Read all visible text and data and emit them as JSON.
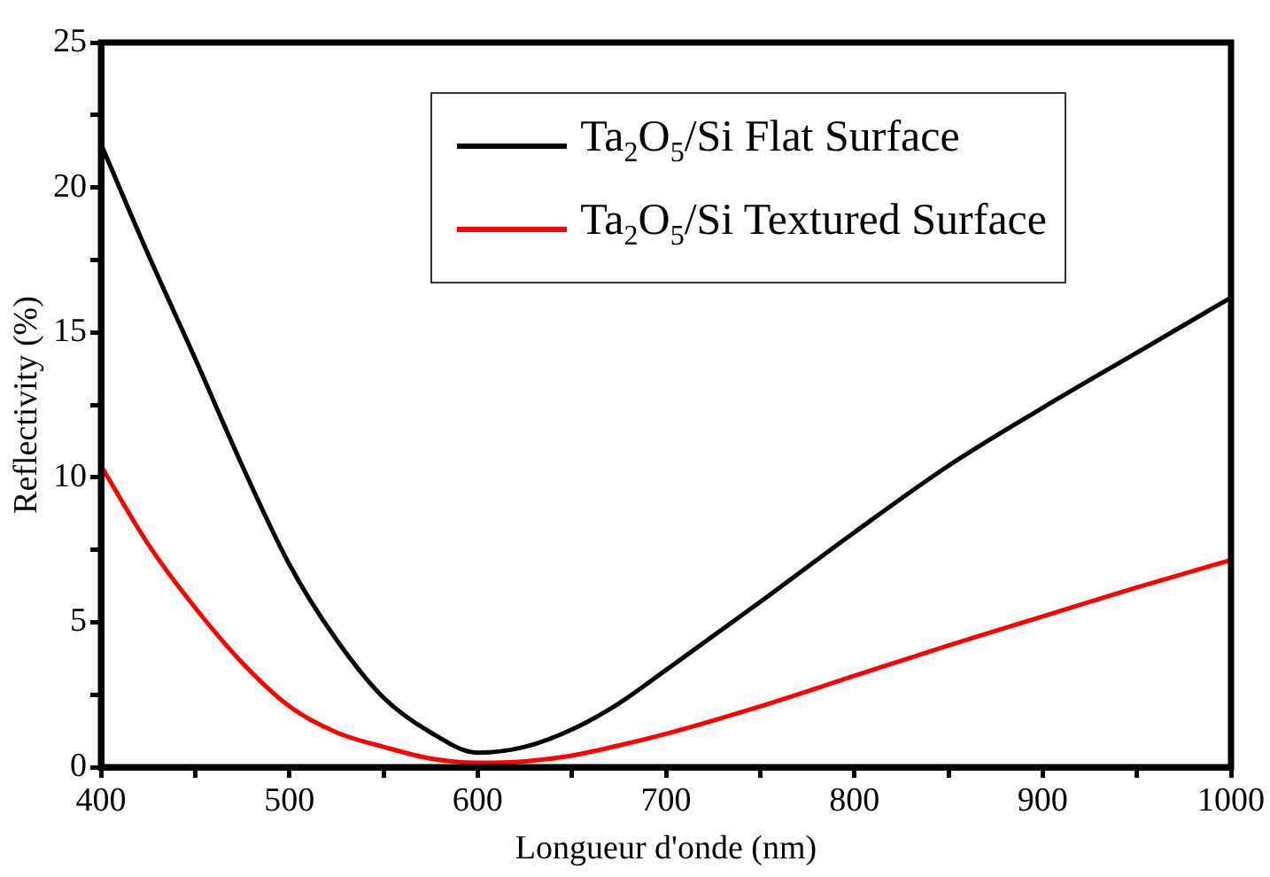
{
  "chart_data": {
    "type": "line",
    "xlabel": "Longueur d'onde (nm)",
    "ylabel": "Reflectivity (%)",
    "x": [
      400,
      425,
      450,
      475,
      500,
      525,
      550,
      575,
      600,
      625,
      650,
      675,
      700,
      750,
      800,
      850,
      900,
      950,
      1000
    ],
    "series": [
      {
        "name": "Ta$_{2}$O$_{5}$/Si Flat Surface",
        "color": "#000000",
        "values": [
          21.5,
          17.7,
          14.1,
          10.4,
          7.0,
          4.4,
          2.4,
          1.2,
          0.5,
          0.7,
          1.3,
          2.2,
          3.35,
          5.7,
          8.1,
          10.4,
          12.4,
          14.3,
          16.2
        ]
      },
      {
        "name": "Ta$_{2}$O$_{5}$/Si Textured Surface",
        "color": "#ff0000",
        "values": [
          10.4,
          7.7,
          5.5,
          3.6,
          2.1,
          1.2,
          0.7,
          0.3,
          0.15,
          0.2,
          0.4,
          0.75,
          1.15,
          2.1,
          3.15,
          4.2,
          5.2,
          6.2,
          7.15
        ]
      }
    ],
    "xlim": [
      400,
      1000
    ],
    "ylim": [
      0,
      25
    ],
    "xticks": [
      400,
      {
        "value": 450,
        "label": null
      },
      500,
      {
        "value": 550,
        "label": null
      },
      600,
      {
        "value": 650,
        "label": null
      },
      700,
      {
        "value": 750,
        "label": null
      },
      800,
      {
        "value": 850,
        "label": null
      },
      900,
      {
        "value": 950,
        "label": null
      },
      1000
    ],
    "yticks": [
      0,
      {
        "value": 2.5,
        "label": null
      },
      5,
      {
        "value": 7.5,
        "label": null
      },
      10,
      {
        "value": 12.5,
        "label": null
      },
      15,
      {
        "value": 17.5,
        "label": null
      },
      20,
      {
        "value": 22.5,
        "label": null
      },
      25
    ],
    "legend": "top right",
    "marker": "none",
    "line_style": "solid"
  }
}
